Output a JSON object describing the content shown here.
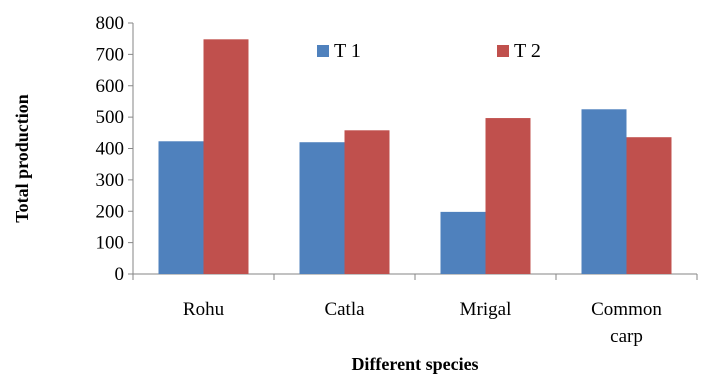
{
  "chart_data": {
    "type": "bar",
    "categories": [
      [
        "Rohu"
      ],
      [
        "Catla"
      ],
      [
        "Mrigal"
      ],
      [
        "Common",
        "carp"
      ]
    ],
    "series": [
      {
        "name": "T 1",
        "values": [
          423,
          420,
          198,
          525
        ],
        "color": "#4F81BD"
      },
      {
        "name": "T 2",
        "values": [
          748,
          458,
          497,
          436
        ],
        "color": "#C0504D"
      }
    ],
    "xlabel": "Different species",
    "ylabel": "Total production",
    "ylim": [
      0,
      800
    ],
    "yticks": [
      "0",
      "100",
      "200",
      "300",
      "400",
      "500",
      "600",
      "700",
      "800"
    ],
    "grid": false,
    "legend_position": "top-center"
  }
}
